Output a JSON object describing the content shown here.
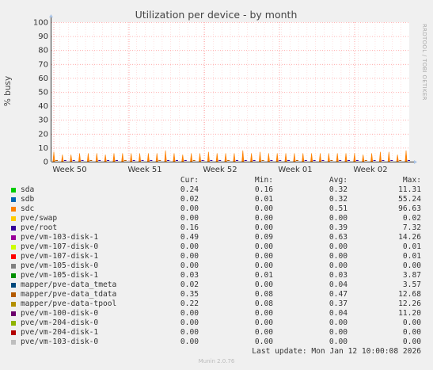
{
  "chart_data": {
    "type": "line",
    "title": "Utilization per device - by month",
    "ylabel": "% busy",
    "ylim": [
      0,
      100
    ],
    "yticks": [
      0,
      10,
      20,
      30,
      40,
      50,
      60,
      70,
      80,
      90,
      100
    ],
    "xticks": [
      "Week 50",
      "Week 51",
      "Week 52",
      "Week 01",
      "Week 02"
    ],
    "side_label": "RRDTOOL / TOBI OETIKER",
    "columns": [
      "Cur:",
      "Min:",
      "Avg:",
      "Max:"
    ],
    "series": [
      {
        "name": "sda",
        "color": "#00cc00",
        "cur": "0.24",
        "min": "0.16",
        "avg": "0.32",
        "max": "11.31"
      },
      {
        "name": "sdb",
        "color": "#0066b3",
        "cur": "0.02",
        "min": "0.01",
        "avg": "0.32",
        "max": "55.24"
      },
      {
        "name": "sdc",
        "color": "#ff8000",
        "cur": "0.00",
        "min": "0.00",
        "avg": "0.51",
        "max": "96.63"
      },
      {
        "name": "pve/swap",
        "color": "#ffcc00",
        "cur": "0.00",
        "min": "0.00",
        "avg": "0.00",
        "max": "0.02"
      },
      {
        "name": "pve/root",
        "color": "#330099",
        "cur": "0.16",
        "min": "0.00",
        "avg": "0.39",
        "max": "7.32"
      },
      {
        "name": "pve/vm-103-disk-1",
        "color": "#990099",
        "cur": "0.49",
        "min": "0.09",
        "avg": "0.63",
        "max": "14.26"
      },
      {
        "name": "pve/vm-107-disk-0",
        "color": "#ccff00",
        "cur": "0.00",
        "min": "0.00",
        "avg": "0.00",
        "max": "0.01"
      },
      {
        "name": "pve/vm-107-disk-1",
        "color": "#ff0000",
        "cur": "0.00",
        "min": "0.00",
        "avg": "0.00",
        "max": "0.01"
      },
      {
        "name": "pve/vm-105-disk-0",
        "color": "#808080",
        "cur": "0.00",
        "min": "0.00",
        "avg": "0.00",
        "max": "0.00"
      },
      {
        "name": "pve/vm-105-disk-1",
        "color": "#008f00",
        "cur": "0.03",
        "min": "0.01",
        "avg": "0.03",
        "max": "3.87"
      },
      {
        "name": "mapper/pve-data_tmeta",
        "color": "#00487d",
        "cur": "0.02",
        "min": "0.00",
        "avg": "0.04",
        "max": "3.57"
      },
      {
        "name": "mapper/pve-data_tdata",
        "color": "#b35a00",
        "cur": "0.35",
        "min": "0.08",
        "avg": "0.47",
        "max": "12.68"
      },
      {
        "name": "mapper/pve-data-tpool",
        "color": "#b38f00",
        "cur": "0.22",
        "min": "0.08",
        "avg": "0.37",
        "max": "12.26"
      },
      {
        "name": "pve/vm-100-disk-0",
        "color": "#6b006b",
        "cur": "0.00",
        "min": "0.00",
        "avg": "0.04",
        "max": "11.20"
      },
      {
        "name": "pve/vm-204-disk-0",
        "color": "#8fb300",
        "cur": "0.00",
        "min": "0.00",
        "avg": "0.00",
        "max": "0.00"
      },
      {
        "name": "pve/vm-204-disk-1",
        "color": "#b30000",
        "cur": "0.00",
        "min": "0.00",
        "avg": "0.00",
        "max": "0.00"
      },
      {
        "name": "pve/vm-103-disk-0",
        "color": "#bebebe",
        "cur": "0.00",
        "min": "0.00",
        "avg": "0.00",
        "max": "0.00"
      }
    ],
    "spike_series": "sdc",
    "spike_values": [
      7,
      5,
      5,
      6,
      6,
      6,
      5,
      6,
      6,
      6,
      6,
      6,
      6,
      8,
      6,
      5,
      6,
      6,
      7,
      6,
      6,
      6,
      8,
      6,
      7,
      6,
      6,
      6,
      6,
      6,
      6,
      6,
      6,
      6,
      6,
      6,
      5,
      6,
      7,
      7,
      5,
      8
    ],
    "last_update": "Last update:  Mon Jan 12 10:00:08 2026",
    "grid": true
  },
  "footer": "Munin 2.0.76"
}
